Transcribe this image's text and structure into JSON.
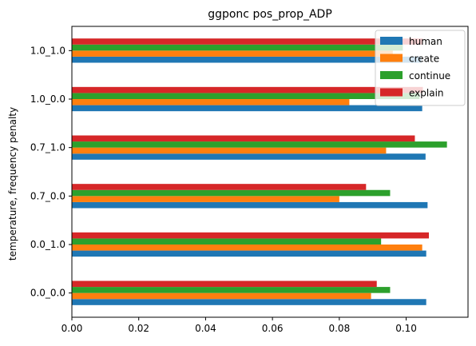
{
  "chart_data": {
    "type": "bar",
    "orientation": "horizontal",
    "title": "ggponc pos_prop_ADP",
    "xlabel": "",
    "ylabel": "temperature, frequency penalty",
    "xlim": [
      0,
      0.1185
    ],
    "xticks": [
      "0.00",
      "0.02",
      "0.04",
      "0.06",
      "0.08",
      "0.10"
    ],
    "categories": [
      "0.0_0.0",
      "0.0_1.0",
      "0.7_0.0",
      "0.7_1.0",
      "1.0_0.0",
      "1.0_1.0"
    ],
    "series": [
      {
        "name": "human",
        "color": "#1f77b4",
        "values": [
          0.106,
          0.106,
          0.1064,
          0.1058,
          0.1048,
          0.1045
        ]
      },
      {
        "name": "create",
        "color": "#ff7f0e",
        "values": [
          0.0895,
          0.1048,
          0.08,
          0.094,
          0.083,
          0.096
        ]
      },
      {
        "name": "continue",
        "color": "#2ca02c",
        "values": [
          0.0952,
          0.0925,
          0.0952,
          0.1122,
          0.104,
          0.099
        ]
      },
      {
        "name": "explain",
        "color": "#d62728",
        "values": [
          0.0912,
          0.1068,
          0.088,
          0.1026,
          0.105,
          0.105
        ]
      }
    ],
    "grid": false,
    "legend": "top-right"
  }
}
